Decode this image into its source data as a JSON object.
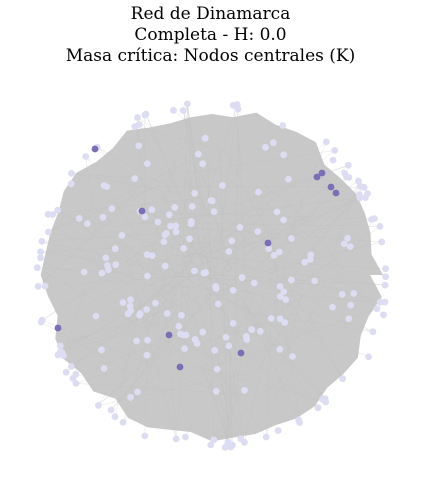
{
  "title": {
    "line1": "Red de Dinamarca",
    "line2": "Completa - H: 0.0",
    "line3": "Masa crítica: Nodos centrales (K)"
  },
  "graph": {
    "edge_color": "#c8c8c8",
    "node_color_regular": "#dcdcf2",
    "node_color_highlight": "#7a6fb6",
    "layout": "circular cloud"
  }
}
